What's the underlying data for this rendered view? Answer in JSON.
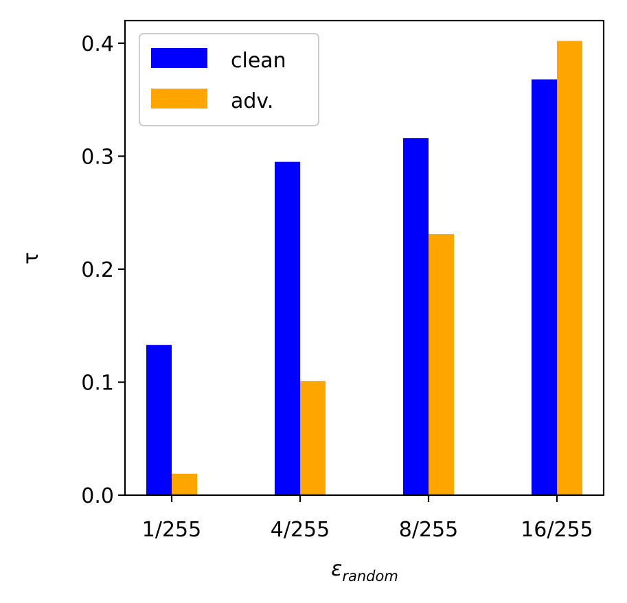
{
  "chart_data": {
    "type": "bar",
    "categories": [
      "1/255",
      "4/255",
      "8/255",
      "16/255"
    ],
    "series": [
      {
        "name": "clean",
        "color": "#0000ff",
        "values": [
          0.133,
          0.295,
          0.316,
          0.368
        ]
      },
      {
        "name": "adv.",
        "color": "#ffa500",
        "values": [
          0.019,
          0.101,
          0.231,
          0.402
        ]
      }
    ],
    "xlabel_symbol": "ε",
    "xlabel_subscript": "random",
    "ylabel": "τ",
    "ylim": [
      0.0,
      0.42
    ],
    "yticks": [
      "0.0",
      "0.1",
      "0.2",
      "0.3",
      "0.4"
    ],
    "grid": false,
    "legend_position": "top-left"
  }
}
